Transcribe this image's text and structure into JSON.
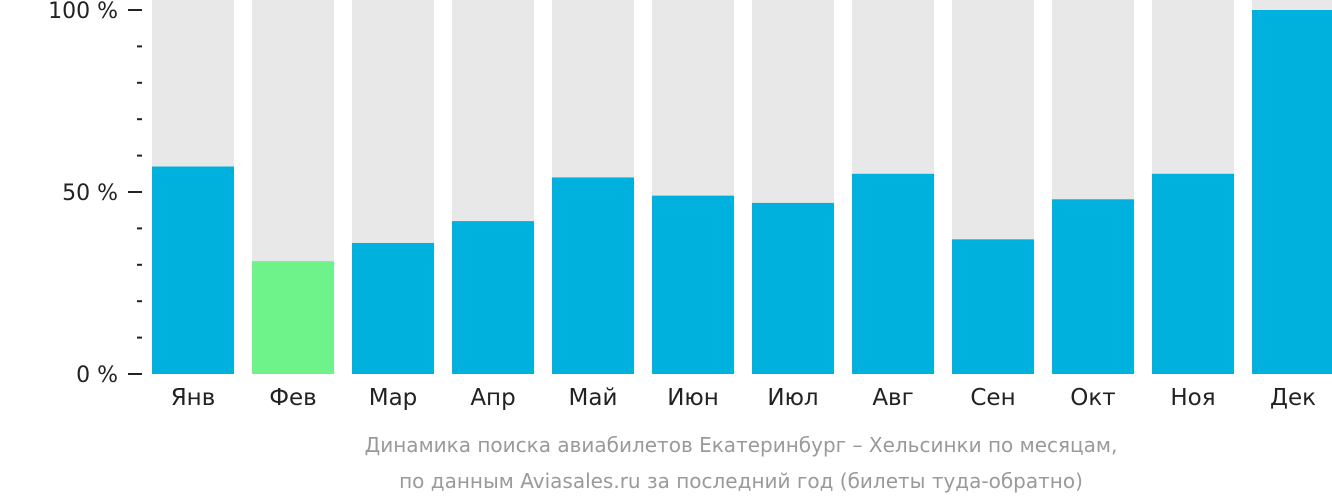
{
  "chart_data": {
    "type": "bar",
    "categories": [
      "Янв",
      "Фев",
      "Мар",
      "Апр",
      "Май",
      "Июн",
      "Июл",
      "Авг",
      "Сен",
      "Окт",
      "Ноя",
      "Дек"
    ],
    "values": [
      57,
      31,
      36,
      42,
      54,
      49,
      47,
      55,
      37,
      48,
      55,
      100
    ],
    "ylim": [
      0,
      100
    ],
    "yticks": [
      {
        "value": 100,
        "label": "100 %"
      },
      {
        "value": 50,
        "label": "50 %"
      },
      {
        "value": 0,
        "label": "0 %"
      }
    ],
    "minor_ticks": [
      10,
      20,
      30,
      40,
      60,
      70,
      80,
      90
    ],
    "highlight_index": 1,
    "colors": {
      "bar": "#00b0dd",
      "highlight": "#6ef28a",
      "background_bar": "#e8e8e8",
      "axis": "#222222"
    }
  },
  "caption": {
    "line1": "Динамика поиска авиабилетов Екатеринбург – Хельсинки по месяцам,",
    "line2": "по данным Aviasales.ru за последний год (билеты туда-обратно)"
  }
}
